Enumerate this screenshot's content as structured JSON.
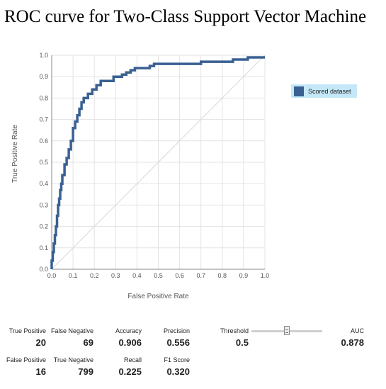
{
  "chart_data": {
    "type": "line",
    "title": "ROC curve for Two-Class Support Vector Machine",
    "xlabel": "False Positive Rate",
    "ylabel": "True Positive Rate",
    "xlim": [
      0,
      1
    ],
    "ylim": [
      0,
      1
    ],
    "x_ticks": [
      "0.0",
      "0.1",
      "0.2",
      "0.3",
      "0.4",
      "0.5",
      "0.6",
      "0.7",
      "0.8",
      "0.9",
      "1.0"
    ],
    "y_ticks": [
      "0.0",
      "0.1",
      "0.2",
      "0.3",
      "0.4",
      "0.5",
      "0.6",
      "0.7",
      "0.8",
      "0.9",
      "1.0"
    ],
    "grid": true,
    "legend": "right",
    "diagonal_reference": true,
    "series": [
      {
        "name": "Scored dataset",
        "color": "#3a6092",
        "x": [
          0,
          0,
          0.005,
          0.005,
          0.01,
          0.01,
          0.015,
          0.015,
          0.02,
          0.02,
          0.025,
          0.025,
          0.03,
          0.03,
          0.035,
          0.035,
          0.04,
          0.04,
          0.045,
          0.045,
          0.05,
          0.05,
          0.06,
          0.06,
          0.07,
          0.07,
          0.08,
          0.08,
          0.09,
          0.09,
          0.1,
          0.1,
          0.11,
          0.11,
          0.12,
          0.12,
          0.13,
          0.13,
          0.14,
          0.14,
          0.15,
          0.15,
          0.17,
          0.17,
          0.19,
          0.19,
          0.21,
          0.21,
          0.23,
          0.23,
          0.25,
          0.25,
          0.29,
          0.29,
          0.31,
          0.31,
          0.33,
          0.33,
          0.35,
          0.35,
          0.37,
          0.37,
          0.39,
          0.39,
          0.41,
          0.41,
          0.46,
          0.46,
          0.48,
          0.48,
          0.7,
          0.7,
          0.75,
          0.75,
          0.85,
          0.85,
          0.87,
          0.87,
          0.92,
          0.92,
          1.0
        ],
        "y": [
          0,
          0.04,
          0.04,
          0.08,
          0.08,
          0.12,
          0.12,
          0.16,
          0.16,
          0.2,
          0.2,
          0.25,
          0.25,
          0.3,
          0.3,
          0.33,
          0.33,
          0.37,
          0.37,
          0.4,
          0.4,
          0.44,
          0.44,
          0.49,
          0.49,
          0.52,
          0.52,
          0.56,
          0.56,
          0.6,
          0.6,
          0.66,
          0.66,
          0.69,
          0.69,
          0.72,
          0.72,
          0.75,
          0.75,
          0.78,
          0.78,
          0.8,
          0.8,
          0.82,
          0.82,
          0.84,
          0.84,
          0.86,
          0.86,
          0.88,
          0.88,
          0.88,
          0.88,
          0.9,
          0.9,
          0.9,
          0.9,
          0.91,
          0.91,
          0.92,
          0.92,
          0.93,
          0.93,
          0.94,
          0.94,
          0.94,
          0.94,
          0.95,
          0.95,
          0.96,
          0.96,
          0.97,
          0.97,
          0.97,
          0.97,
          0.98,
          0.98,
          0.98,
          0.98,
          0.99,
          0.99
        ]
      }
    ]
  },
  "metrics": {
    "true_positive": {
      "label": "True Positive",
      "value": "20"
    },
    "false_negative": {
      "label": "False Negative",
      "value": "69"
    },
    "accuracy": {
      "label": "Accuracy",
      "value": "0.906"
    },
    "precision": {
      "label": "Precision",
      "value": "0.556"
    },
    "threshold": {
      "label": "Threshold",
      "value": "0.5"
    },
    "auc": {
      "label": "AUC",
      "value": "0.878"
    },
    "false_positive": {
      "label": "False Positive",
      "value": "16"
    },
    "true_negative": {
      "label": "True Negative",
      "value": "799"
    },
    "recall": {
      "label": "Recall",
      "value": "0.225"
    },
    "f1_score": {
      "label": "F1 Score",
      "value": "0.320"
    }
  },
  "threshold_slider": {
    "value": 0.5,
    "min": 0,
    "max": 1
  }
}
